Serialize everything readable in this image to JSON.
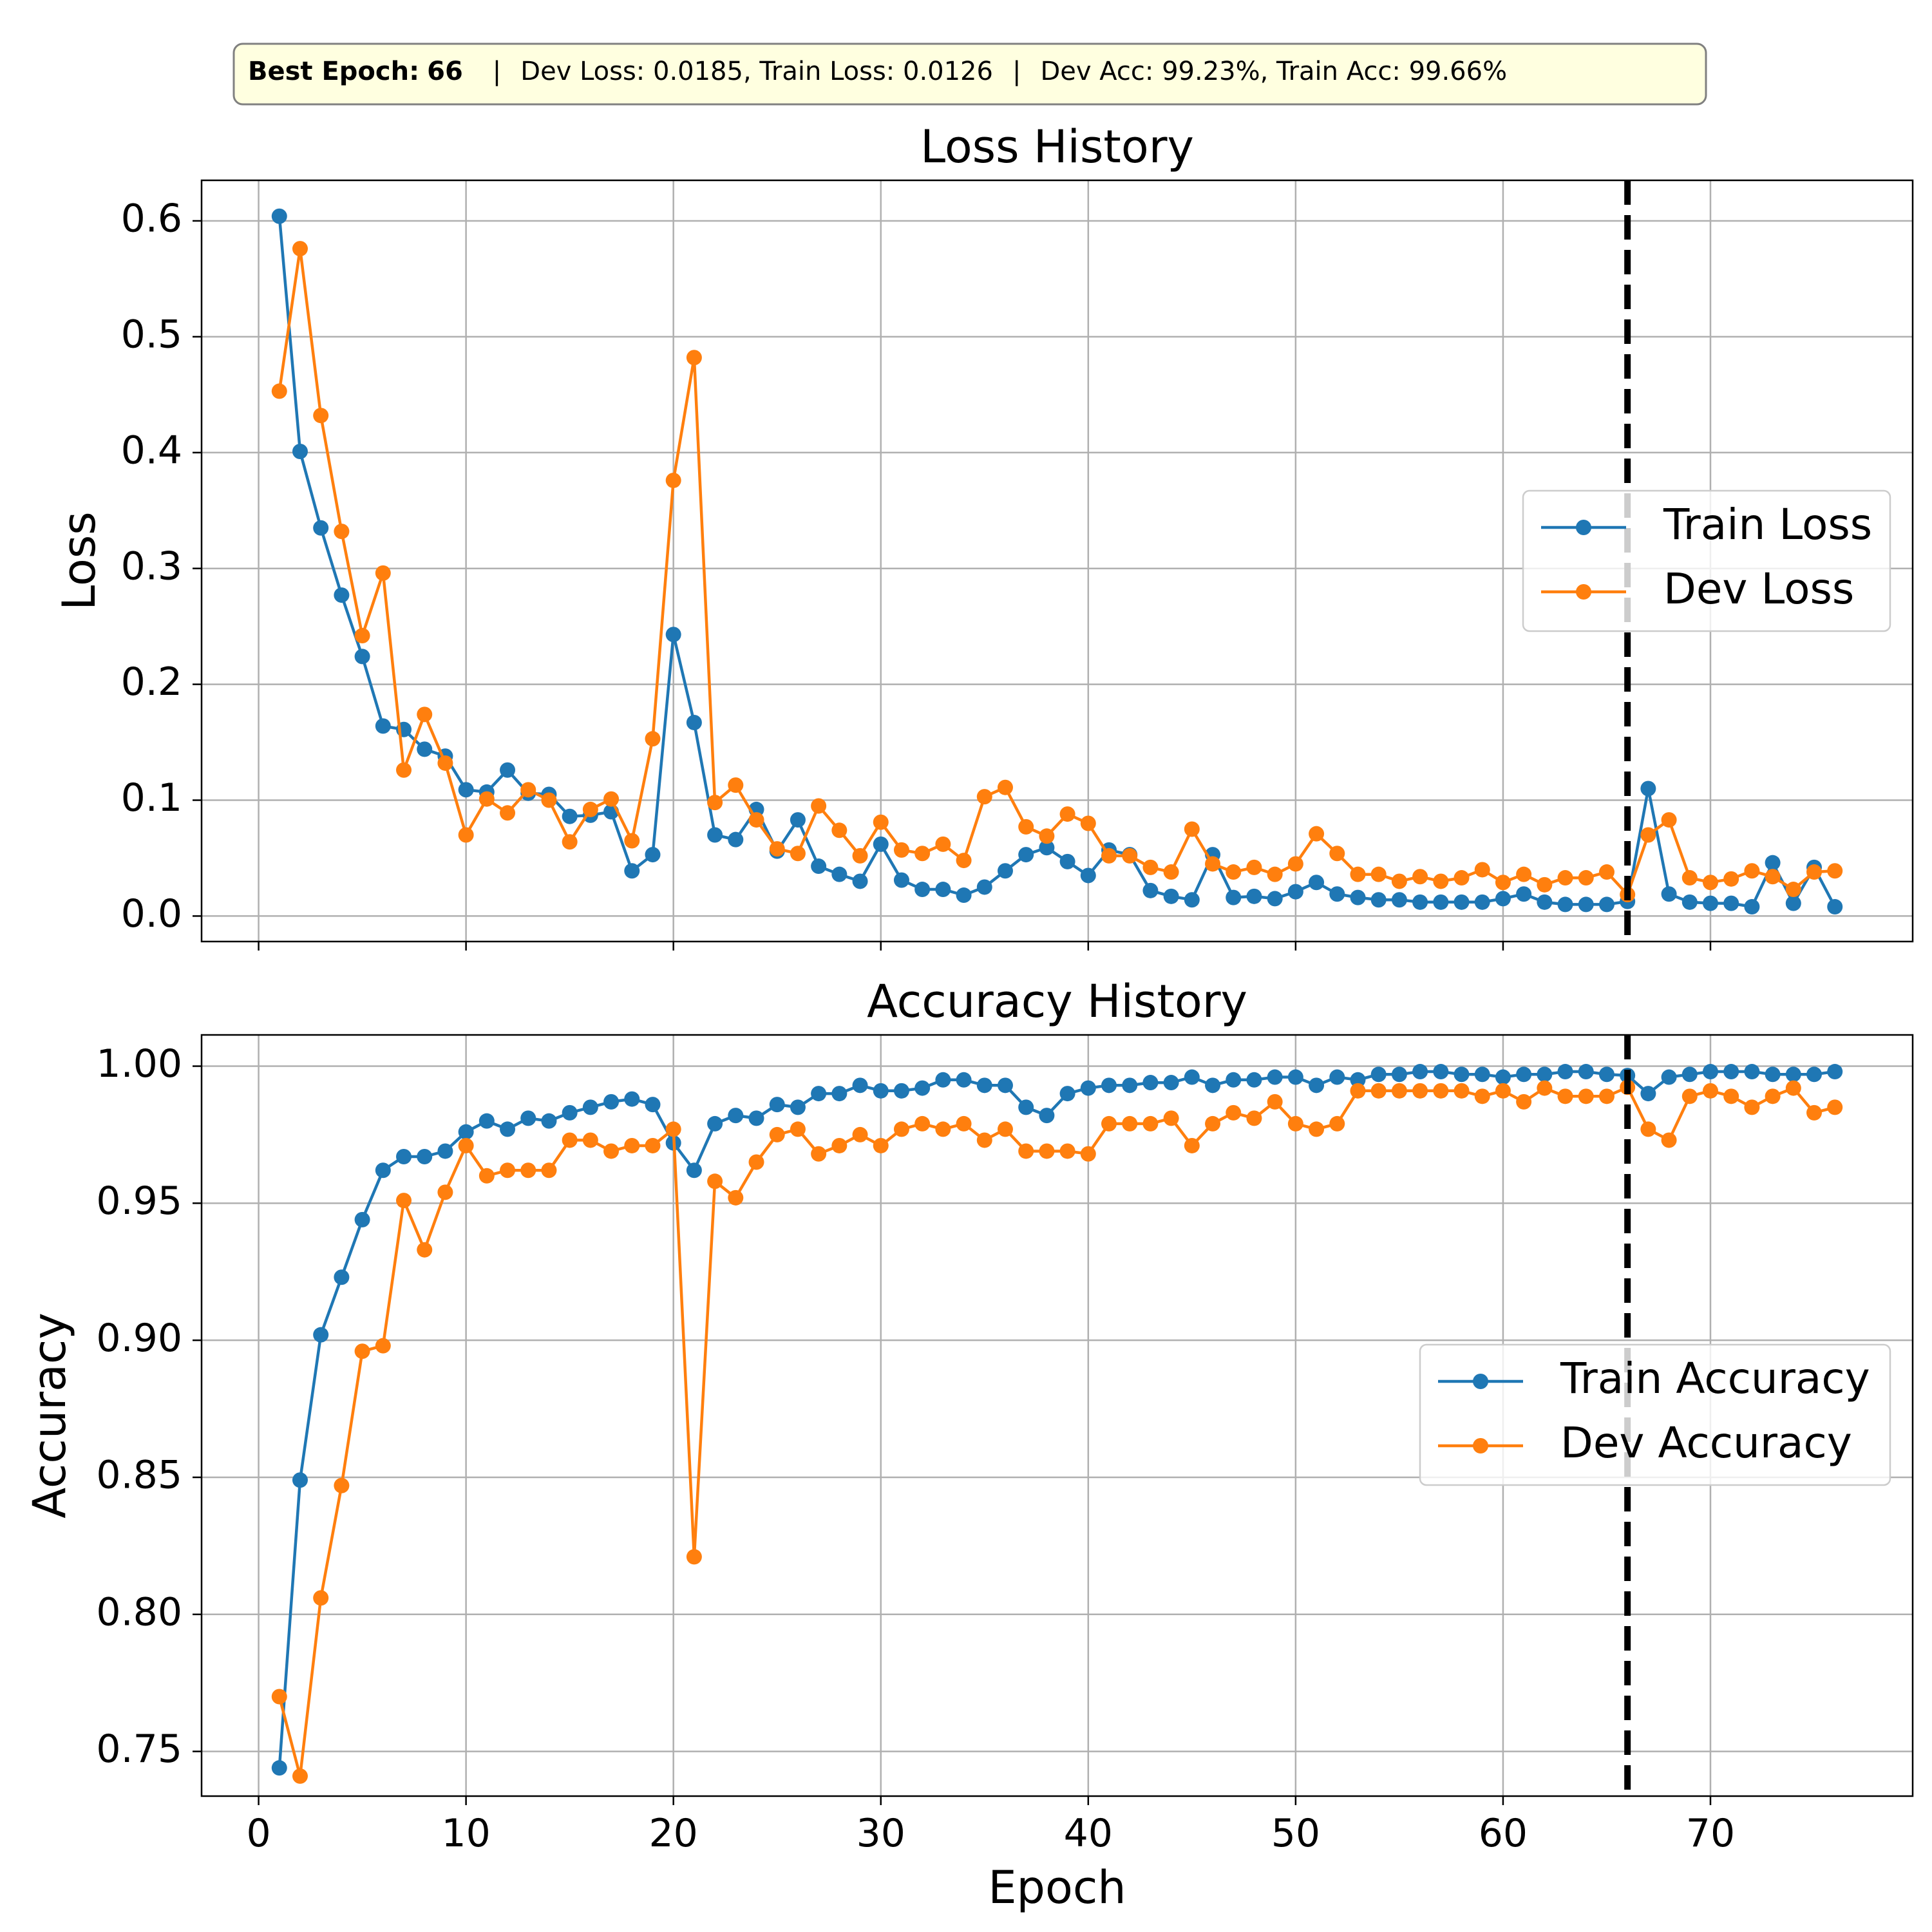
{
  "banner": {
    "best_label": "Best Epoch",
    "best_value": "66",
    "stats_1": "Dev Loss: 0.0185, Train Loss: 0.0126",
    "stats_2": "Dev Acc: 99.23%, Train Acc: 99.66%",
    "separator": "|"
  },
  "colors": {
    "train": "#1f77b4",
    "dev": "#ff7f0e",
    "best_line": "#000000",
    "banner_fill": "#ffffe0",
    "banner_border": "#808080",
    "grid": "#b0b0b0"
  },
  "chart_data": [
    {
      "type": "line",
      "title": "Loss History",
      "xlabel": "",
      "ylabel": "Loss",
      "xlim": [
        -2.75,
        79.75
      ],
      "ylim": [
        -0.022,
        0.635
      ],
      "xticks": [
        0,
        10,
        20,
        30,
        40,
        50,
        60,
        70
      ],
      "xtick_labels_visible": false,
      "yticks": [
        0.0,
        0.1,
        0.2,
        0.3,
        0.4,
        0.5,
        0.6
      ],
      "ytick_labels": [
        "0.0",
        "0.1",
        "0.2",
        "0.3",
        "0.4",
        "0.5",
        "0.6"
      ],
      "grid": true,
      "legend_placement": "center-right",
      "best_epoch_line": 66,
      "x": [
        1,
        2,
        3,
        4,
        5,
        6,
        7,
        8,
        9,
        10,
        11,
        12,
        13,
        14,
        15,
        16,
        17,
        18,
        19,
        20,
        21,
        22,
        23,
        24,
        25,
        26,
        27,
        28,
        29,
        30,
        31,
        32,
        33,
        34,
        35,
        36,
        37,
        38,
        39,
        40,
        41,
        42,
        43,
        44,
        45,
        46,
        47,
        48,
        49,
        50,
        51,
        52,
        53,
        54,
        55,
        56,
        57,
        58,
        59,
        60,
        61,
        62,
        63,
        64,
        65,
        66,
        67,
        68,
        69,
        70,
        71,
        72,
        73,
        74,
        75,
        76
      ],
      "series": [
        {
          "name": "Train Loss",
          "color_key": "train",
          "values": [
            0.604,
            0.401,
            0.335,
            0.277,
            0.224,
            0.164,
            0.161,
            0.144,
            0.138,
            0.109,
            0.107,
            0.126,
            0.106,
            0.105,
            0.086,
            0.087,
            0.09,
            0.039,
            0.053,
            0.243,
            0.167,
            0.07,
            0.066,
            0.092,
            0.056,
            0.083,
            0.043,
            0.036,
            0.03,
            0.062,
            0.031,
            0.023,
            0.023,
            0.018,
            0.025,
            0.039,
            0.053,
            0.059,
            0.047,
            0.035,
            0.057,
            0.053,
            0.022,
            0.017,
            0.014,
            0.053,
            0.016,
            0.017,
            0.015,
            0.021,
            0.029,
            0.019,
            0.016,
            0.014,
            0.014,
            0.012,
            0.012,
            0.012,
            0.012,
            0.015,
            0.019,
            0.012,
            0.01,
            0.01,
            0.01,
            0.0126,
            0.11,
            0.019,
            0.012,
            0.011,
            0.011,
            0.008,
            0.046,
            0.011,
            0.042,
            0.008
          ]
        },
        {
          "name": "Dev Loss",
          "color_key": "dev",
          "values": [
            0.453,
            0.576,
            0.432,
            0.332,
            0.242,
            0.296,
            0.126,
            0.174,
            0.132,
            0.07,
            0.101,
            0.089,
            0.109,
            0.1,
            0.064,
            0.092,
            0.101,
            0.065,
            0.153,
            0.376,
            0.482,
            0.098,
            0.113,
            0.083,
            0.058,
            0.054,
            0.095,
            0.074,
            0.052,
            0.081,
            0.057,
            0.054,
            0.062,
            0.048,
            0.103,
            0.111,
            0.077,
            0.069,
            0.088,
            0.08,
            0.052,
            0.052,
            0.042,
            0.038,
            0.075,
            0.045,
            0.038,
            0.042,
            0.036,
            0.045,
            0.071,
            0.054,
            0.036,
            0.036,
            0.03,
            0.034,
            0.03,
            0.033,
            0.04,
            0.029,
            0.036,
            0.027,
            0.033,
            0.033,
            0.038,
            0.0185,
            0.07,
            0.083,
            0.033,
            0.029,
            0.032,
            0.039,
            0.034,
            0.023,
            0.038,
            0.039
          ]
        }
      ]
    },
    {
      "type": "line",
      "title": "Accuracy History",
      "xlabel": "Epoch",
      "ylabel": "Accuracy",
      "xlim": [
        -2.75,
        79.75
      ],
      "ylim": [
        0.7337,
        1.0114
      ],
      "xticks": [
        0,
        10,
        20,
        30,
        40,
        50,
        60,
        70
      ],
      "xtick_labels": [
        "0",
        "10",
        "20",
        "30",
        "40",
        "50",
        "60",
        "70"
      ],
      "yticks": [
        0.75,
        0.8,
        0.85,
        0.9,
        0.95,
        1.0
      ],
      "ytick_labels": [
        "0.75",
        "0.80",
        "0.85",
        "0.90",
        "0.95",
        "1.00"
      ],
      "grid": true,
      "legend_placement": "center-right",
      "best_epoch_line": 66,
      "x": [
        1,
        2,
        3,
        4,
        5,
        6,
        7,
        8,
        9,
        10,
        11,
        12,
        13,
        14,
        15,
        16,
        17,
        18,
        19,
        20,
        21,
        22,
        23,
        24,
        25,
        26,
        27,
        28,
        29,
        30,
        31,
        32,
        33,
        34,
        35,
        36,
        37,
        38,
        39,
        40,
        41,
        42,
        43,
        44,
        45,
        46,
        47,
        48,
        49,
        50,
        51,
        52,
        53,
        54,
        55,
        56,
        57,
        58,
        59,
        60,
        61,
        62,
        63,
        64,
        65,
        66,
        67,
        68,
        69,
        70,
        71,
        72,
        73,
        74,
        75,
        76
      ],
      "series": [
        {
          "name": "Train Accuracy",
          "color_key": "train",
          "values": [
            0.744,
            0.849,
            0.902,
            0.923,
            0.944,
            0.962,
            0.967,
            0.967,
            0.969,
            0.976,
            0.98,
            0.977,
            0.981,
            0.98,
            0.983,
            0.985,
            0.987,
            0.988,
            0.986,
            0.972,
            0.962,
            0.979,
            0.982,
            0.981,
            0.986,
            0.985,
            0.99,
            0.99,
            0.993,
            0.991,
            0.991,
            0.992,
            0.995,
            0.995,
            0.993,
            0.993,
            0.985,
            0.982,
            0.99,
            0.992,
            0.993,
            0.993,
            0.994,
            0.994,
            0.996,
            0.993,
            0.995,
            0.995,
            0.996,
            0.996,
            0.993,
            0.996,
            0.995,
            0.997,
            0.997,
            0.998,
            0.998,
            0.997,
            0.997,
            0.996,
            0.997,
            0.997,
            0.998,
            0.998,
            0.997,
            0.9966,
            0.99,
            0.996,
            0.997,
            0.998,
            0.998,
            0.998,
            0.997,
            0.997,
            0.997,
            0.998
          ]
        },
        {
          "name": "Dev Accuracy",
          "color_key": "dev",
          "values": [
            0.77,
            0.741,
            0.806,
            0.847,
            0.896,
            0.898,
            0.951,
            0.933,
            0.954,
            0.971,
            0.96,
            0.962,
            0.962,
            0.962,
            0.973,
            0.973,
            0.969,
            0.971,
            0.971,
            0.977,
            0.821,
            0.958,
            0.952,
            0.965,
            0.975,
            0.977,
            0.968,
            0.971,
            0.975,
            0.971,
            0.977,
            0.979,
            0.977,
            0.979,
            0.973,
            0.977,
            0.969,
            0.969,
            0.969,
            0.968,
            0.979,
            0.979,
            0.979,
            0.981,
            0.971,
            0.979,
            0.983,
            0.981,
            0.987,
            0.979,
            0.977,
            0.979,
            0.991,
            0.991,
            0.991,
            0.991,
            0.991,
            0.991,
            0.989,
            0.991,
            0.987,
            0.992,
            0.989,
            0.989,
            0.989,
            0.9923,
            0.977,
            0.973,
            0.989,
            0.991,
            0.989,
            0.985,
            0.989,
            0.992,
            0.983,
            0.985
          ]
        }
      ]
    }
  ]
}
